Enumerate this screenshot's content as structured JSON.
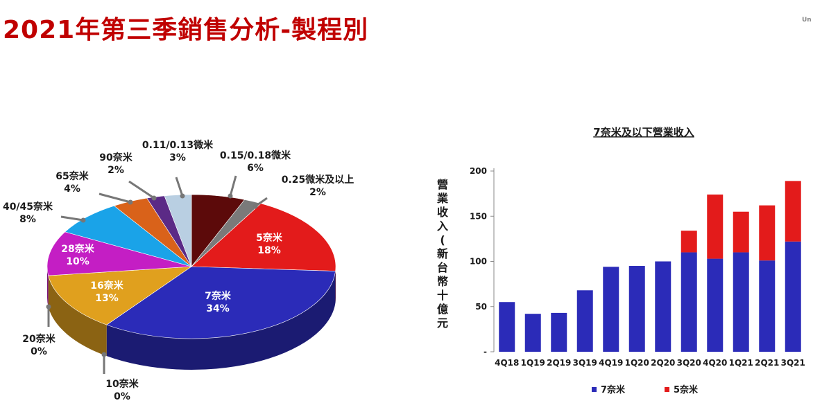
{
  "header": {
    "title": "2021年第三季銷售分析-製程別",
    "corner_text": "Un"
  },
  "chart_data": [
    {
      "type": "pie",
      "slices": [
        {
          "name": "0.15/0.18微米",
          "value": 6,
          "label": "6%",
          "color": "#5c0a0a"
        },
        {
          "name": "0.25微米及以上",
          "value": 2,
          "label": "2%",
          "color": "#7a7a7a"
        },
        {
          "name": "5奈米",
          "value": 18,
          "label": "18%",
          "color": "#e31b1b"
        },
        {
          "name": "7奈米",
          "value": 34,
          "label": "34%",
          "color": "#2b2bb8"
        },
        {
          "name": "10奈米",
          "value": 0,
          "label": "0%",
          "color": "#2b2bb8"
        },
        {
          "name": "16奈米",
          "value": 13,
          "label": "13%",
          "color": "#e0a01e"
        },
        {
          "name": "20奈米",
          "value": 0,
          "label": "0%",
          "color": "#e0a01e"
        },
        {
          "name": "28奈米",
          "value": 10,
          "label": "10%",
          "color": "#c41ec4"
        },
        {
          "name": "40/45奈米",
          "value": 8,
          "label": "8%",
          "color": "#1aa3e8"
        },
        {
          "name": "65奈米",
          "value": 4,
          "label": "4%",
          "color": "#d9621a"
        },
        {
          "name": "90奈米",
          "value": 2,
          "label": "2%",
          "color": "#5b2a86"
        },
        {
          "name": "0.11/0.13微米",
          "value": 3,
          "label": "3%",
          "color": "#b9cfe2"
        }
      ]
    },
    {
      "type": "bar",
      "stacked": true,
      "title": "7奈米及以下營業收入",
      "ylabel": "營業收入(新台幣十億元",
      "categories": [
        "4Q18",
        "1Q19",
        "2Q19",
        "3Q19",
        "4Q19",
        "1Q20",
        "2Q20",
        "3Q20",
        "4Q20",
        "1Q21",
        "2Q21",
        "3Q21"
      ],
      "series": [
        {
          "name": "7奈米",
          "color": "#2b2bb8",
          "values": [
            55,
            42,
            43,
            68,
            94,
            95,
            100,
            110,
            103,
            110,
            101,
            122
          ]
        },
        {
          "name": "5奈米",
          "color": "#e31b1b",
          "values": [
            0,
            0,
            0,
            0,
            0,
            0,
            0,
            24,
            71,
            45,
            61,
            67
          ]
        }
      ],
      "ylim": [
        0,
        200
      ],
      "yticks": [
        "-",
        "50",
        "100",
        "150",
        "200"
      ],
      "legend": "bottom"
    }
  ]
}
